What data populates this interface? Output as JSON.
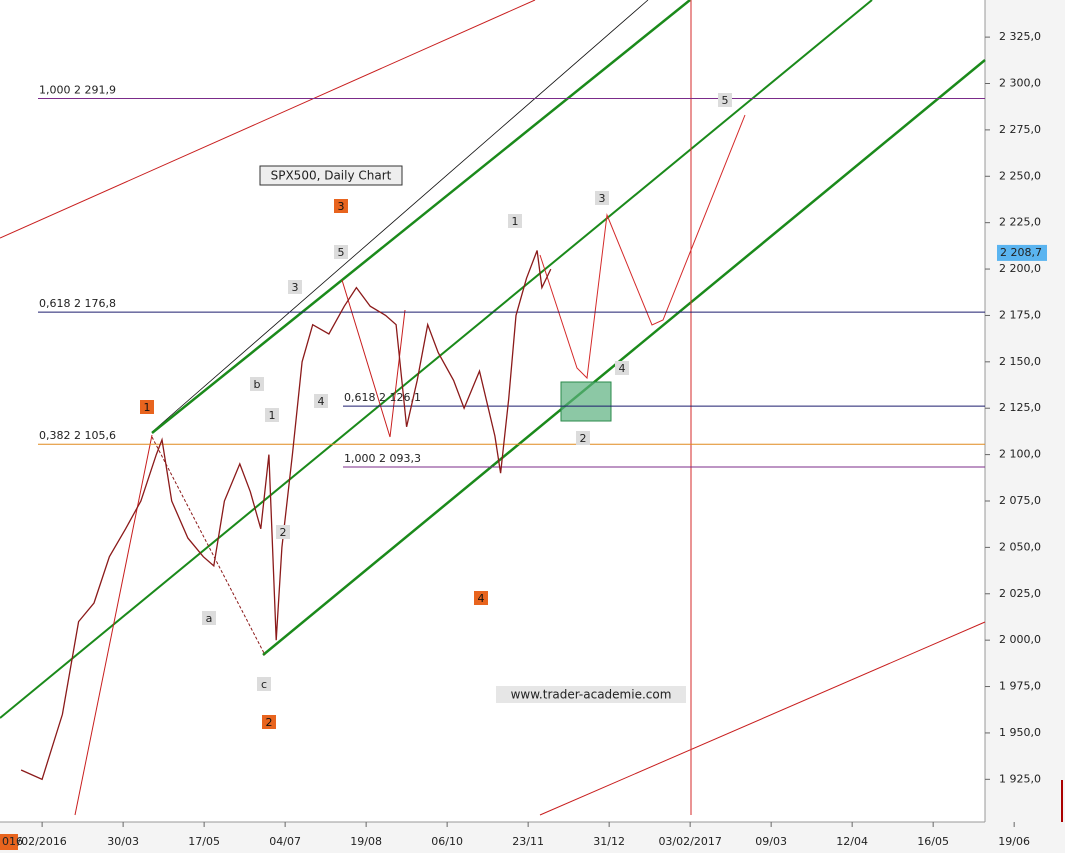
{
  "chart_data": {
    "type": "line",
    "title": "SPX500, Daily Chart",
    "watermark": "www.trader-academie.com",
    "cursor_label": "016",
    "x": [
      -0.26,
      0.0,
      0.25,
      0.45,
      0.64,
      0.83,
      1.03,
      1.22,
      1.41,
      1.48,
      1.6,
      1.8,
      1.99,
      2.12,
      2.25,
      2.44,
      2.57,
      2.7,
      2.8,
      2.89,
      2.96,
      3.09,
      3.21,
      3.34,
      3.54,
      3.73,
      3.88,
      4.05,
      4.24,
      4.37,
      4.5,
      4.63,
      4.76,
      4.89,
      5.08,
      5.21,
      5.4,
      5.59,
      5.66,
      5.76,
      5.85,
      5.98,
      6.11,
      6.17,
      6.28
    ],
    "values": [
      1930,
      1925,
      1960,
      2010,
      2020,
      2045,
      2060,
      2075,
      2100,
      2108,
      2075,
      2055,
      2045,
      2040,
      2075,
      2095,
      2080,
      2060,
      2100,
      2000,
      2050,
      2100,
      2150,
      2170,
      2165,
      2180,
      2190,
      2180,
      2175,
      2170,
      2115,
      2140,
      2170,
      2155,
      2140,
      2125,
      2145,
      2110,
      2090,
      2130,
      2175,
      2195,
      2210,
      2190,
      2200
    ],
    "color": "#8b1a1a",
    "xlim": [
      -0.52,
      11.64
    ],
    "xticks": [
      {
        "value": 0,
        "label": "/02/2016"
      },
      {
        "value": 1,
        "label": "30/03"
      },
      {
        "value": 2,
        "label": "17/05"
      },
      {
        "value": 3,
        "label": "04/07"
      },
      {
        "value": 4,
        "label": "19/08"
      },
      {
        "value": 5,
        "label": "06/10"
      },
      {
        "value": 6,
        "label": "23/11"
      },
      {
        "value": 7,
        "label": "31/12"
      },
      {
        "value": 8,
        "label": "03/02/2017"
      },
      {
        "value": 9,
        "label": "09/03"
      },
      {
        "value": 10,
        "label": "12/04"
      },
      {
        "value": 11,
        "label": "16/05"
      },
      {
        "value": 12,
        "label": "19/06"
      }
    ],
    "ylim": [
      1902,
      2345
    ],
    "yticks": [
      {
        "value": 1925,
        "label": "1 925,0"
      },
      {
        "value": 1950,
        "label": "1 950,0"
      },
      {
        "value": 1975,
        "label": "1 975,0"
      },
      {
        "value": 2000,
        "label": "2 000,0"
      },
      {
        "value": 2025,
        "label": "2 025,0"
      },
      {
        "value": 2050,
        "label": "2 050,0"
      },
      {
        "value": 2075,
        "label": "2 075,0"
      },
      {
        "value": 2100,
        "label": "2 100,0"
      },
      {
        "value": 2125,
        "label": "2 125,0"
      },
      {
        "value": 2150,
        "label": "2 150,0"
      },
      {
        "value": 2175,
        "label": "2 175,0"
      },
      {
        "value": 2200,
        "label": "2 200,0"
      },
      {
        "value": 2225,
        "label": "2 225,0"
      },
      {
        "value": 2250,
        "label": "2 250,0"
      },
      {
        "value": 2275,
        "label": "2 275,0"
      },
      {
        "value": 2300,
        "label": "2 300,0"
      },
      {
        "value": 2325,
        "label": "2 325,0"
      }
    ],
    "last_price": {
      "value": 2208.7,
      "label": "2 208,7"
    },
    "levels": [
      {
        "value": 2291.9,
        "label": "1,000 2 291,9",
        "color": "#7b2b8a"
      },
      {
        "value": 2176.8,
        "label": "0,618 2 176,8",
        "color": "#1c1c6e"
      },
      {
        "value": 2105.6,
        "label": "0,382 2 105,6",
        "color": "#e08a1e"
      },
      {
        "value": 2126.1,
        "label": "0,618 2 126,1",
        "color": "#1c1c6e"
      },
      {
        "value": 2093.3,
        "label": "1,000 2 093,3",
        "color": "#7b2b8a"
      }
    ],
    "wave_labels": [
      {
        "text": "1",
        "style": "orange"
      },
      {
        "text": "3",
        "style": "orange"
      },
      {
        "text": "2",
        "style": "orange"
      },
      {
        "text": "4",
        "style": "orange"
      },
      {
        "text": "5",
        "style": "gray"
      },
      {
        "text": "3",
        "style": "gray"
      },
      {
        "text": "b",
        "style": "gray"
      },
      {
        "text": "1",
        "style": "gray"
      },
      {
        "text": "4",
        "style": "gray"
      },
      {
        "text": "2",
        "style": "gray"
      },
      {
        "text": "a",
        "style": "gray"
      },
      {
        "text": "c",
        "style": "gray"
      },
      {
        "text": "1",
        "style": "gray"
      },
      {
        "text": "3",
        "style": "gray"
      },
      {
        "text": "4",
        "style": "gray"
      },
      {
        "text": "2",
        "style": "gray"
      },
      {
        "text": "5",
        "style": "gray"
      }
    ]
  }
}
